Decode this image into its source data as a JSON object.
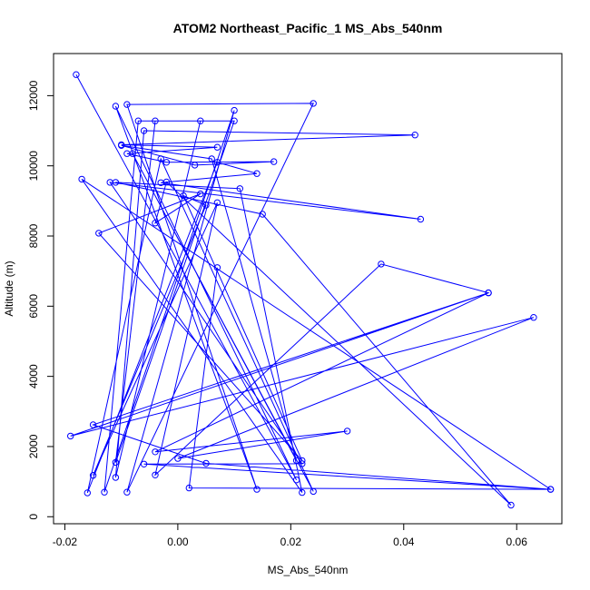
{
  "chart_data": {
    "type": "line",
    "title": "ATOM2 Northeast_Pacific_1 MS_Abs_540nm",
    "xlabel": "MS_Abs_540nm",
    "ylabel": "Altitude (m)",
    "xlim": [
      -0.022,
      0.068
    ],
    "ylim": [
      -200,
      13200
    ],
    "xticks": [
      -0.02,
      0.0,
      0.02,
      0.04,
      0.06
    ],
    "xtick_labels": [
      "-0.02",
      "0.00",
      "0.02",
      "0.04",
      "0.06"
    ],
    "yticks": [
      0,
      2000,
      4000,
      6000,
      8000,
      10000,
      12000
    ],
    "ytick_labels": [
      "0",
      "2000",
      "4000",
      "6000",
      "8000",
      "10000",
      "12000"
    ],
    "grid": false,
    "series": [
      {
        "color": "#0000ff",
        "markers": "open-circle",
        "points": [
          [
            -0.018,
            12600
          ],
          [
            0.021,
            1050
          ],
          [
            -0.011,
            11700
          ],
          [
            0.014,
            780
          ],
          [
            -0.009,
            11750
          ],
          [
            0.024,
            11780
          ],
          [
            -0.009,
            700
          ],
          [
            0.01,
            11580
          ],
          [
            -0.013,
            700
          ],
          [
            -0.007,
            11280
          ],
          [
            0.01,
            11280
          ],
          [
            -0.011,
            1550
          ],
          [
            -0.004,
            11280
          ],
          [
            0.004,
            11280
          ],
          [
            -0.011,
            1120
          ],
          [
            -0.006,
            11000
          ],
          [
            0.042,
            10880
          ],
          [
            -0.01,
            10600
          ],
          [
            0.007,
            10530
          ],
          [
            -0.009,
            10350
          ],
          [
            -0.002,
            10100
          ],
          [
            0.017,
            10120
          ],
          [
            0.003,
            10020
          ],
          [
            -0.01,
            10580
          ],
          [
            0.006,
            10200
          ],
          [
            0.021,
            1600
          ],
          [
            -0.008,
            10350
          ],
          [
            0.024,
            720
          ],
          [
            -0.003,
            10200
          ],
          [
            -0.016,
            680
          ],
          [
            0.007,
            10100
          ],
          [
            0.014,
            9780
          ],
          [
            -0.003,
            9520
          ],
          [
            0.043,
            8480
          ],
          [
            -0.012,
            9530
          ],
          [
            0.022,
            1510
          ],
          [
            -0.006,
            1500
          ],
          [
            0.066,
            780
          ],
          [
            -0.017,
            9620
          ],
          [
            0.022,
            690
          ],
          [
            0.011,
            9350
          ],
          [
            -0.011,
            9530
          ],
          [
            0.015,
            8620
          ],
          [
            0.059,
            330
          ],
          [
            -0.002,
            9540
          ],
          [
            -0.004,
            8370
          ],
          [
            0.004,
            9200
          ],
          [
            -0.014,
            8080
          ],
          [
            0.022,
            1600
          ],
          [
            0.001,
            9150
          ],
          [
            0.005,
            8880
          ],
          [
            -0.015,
            1180
          ],
          [
            0.007,
            8950
          ],
          [
            -0.004,
            1190
          ],
          [
            0.036,
            7200
          ],
          [
            0.055,
            6380
          ],
          [
            -0.004,
            1850
          ],
          [
            0.03,
            2440
          ],
          [
            0.0,
            1660
          ],
          [
            0.063,
            5680
          ],
          [
            -0.019,
            2300
          ],
          [
            0.055,
            6380
          ],
          [
            -0.015,
            2620
          ],
          [
            0.005,
            1520
          ],
          [
            0.066,
            780
          ],
          [
            0.002,
            820
          ],
          [
            0.007,
            7100
          ]
        ]
      }
    ]
  }
}
